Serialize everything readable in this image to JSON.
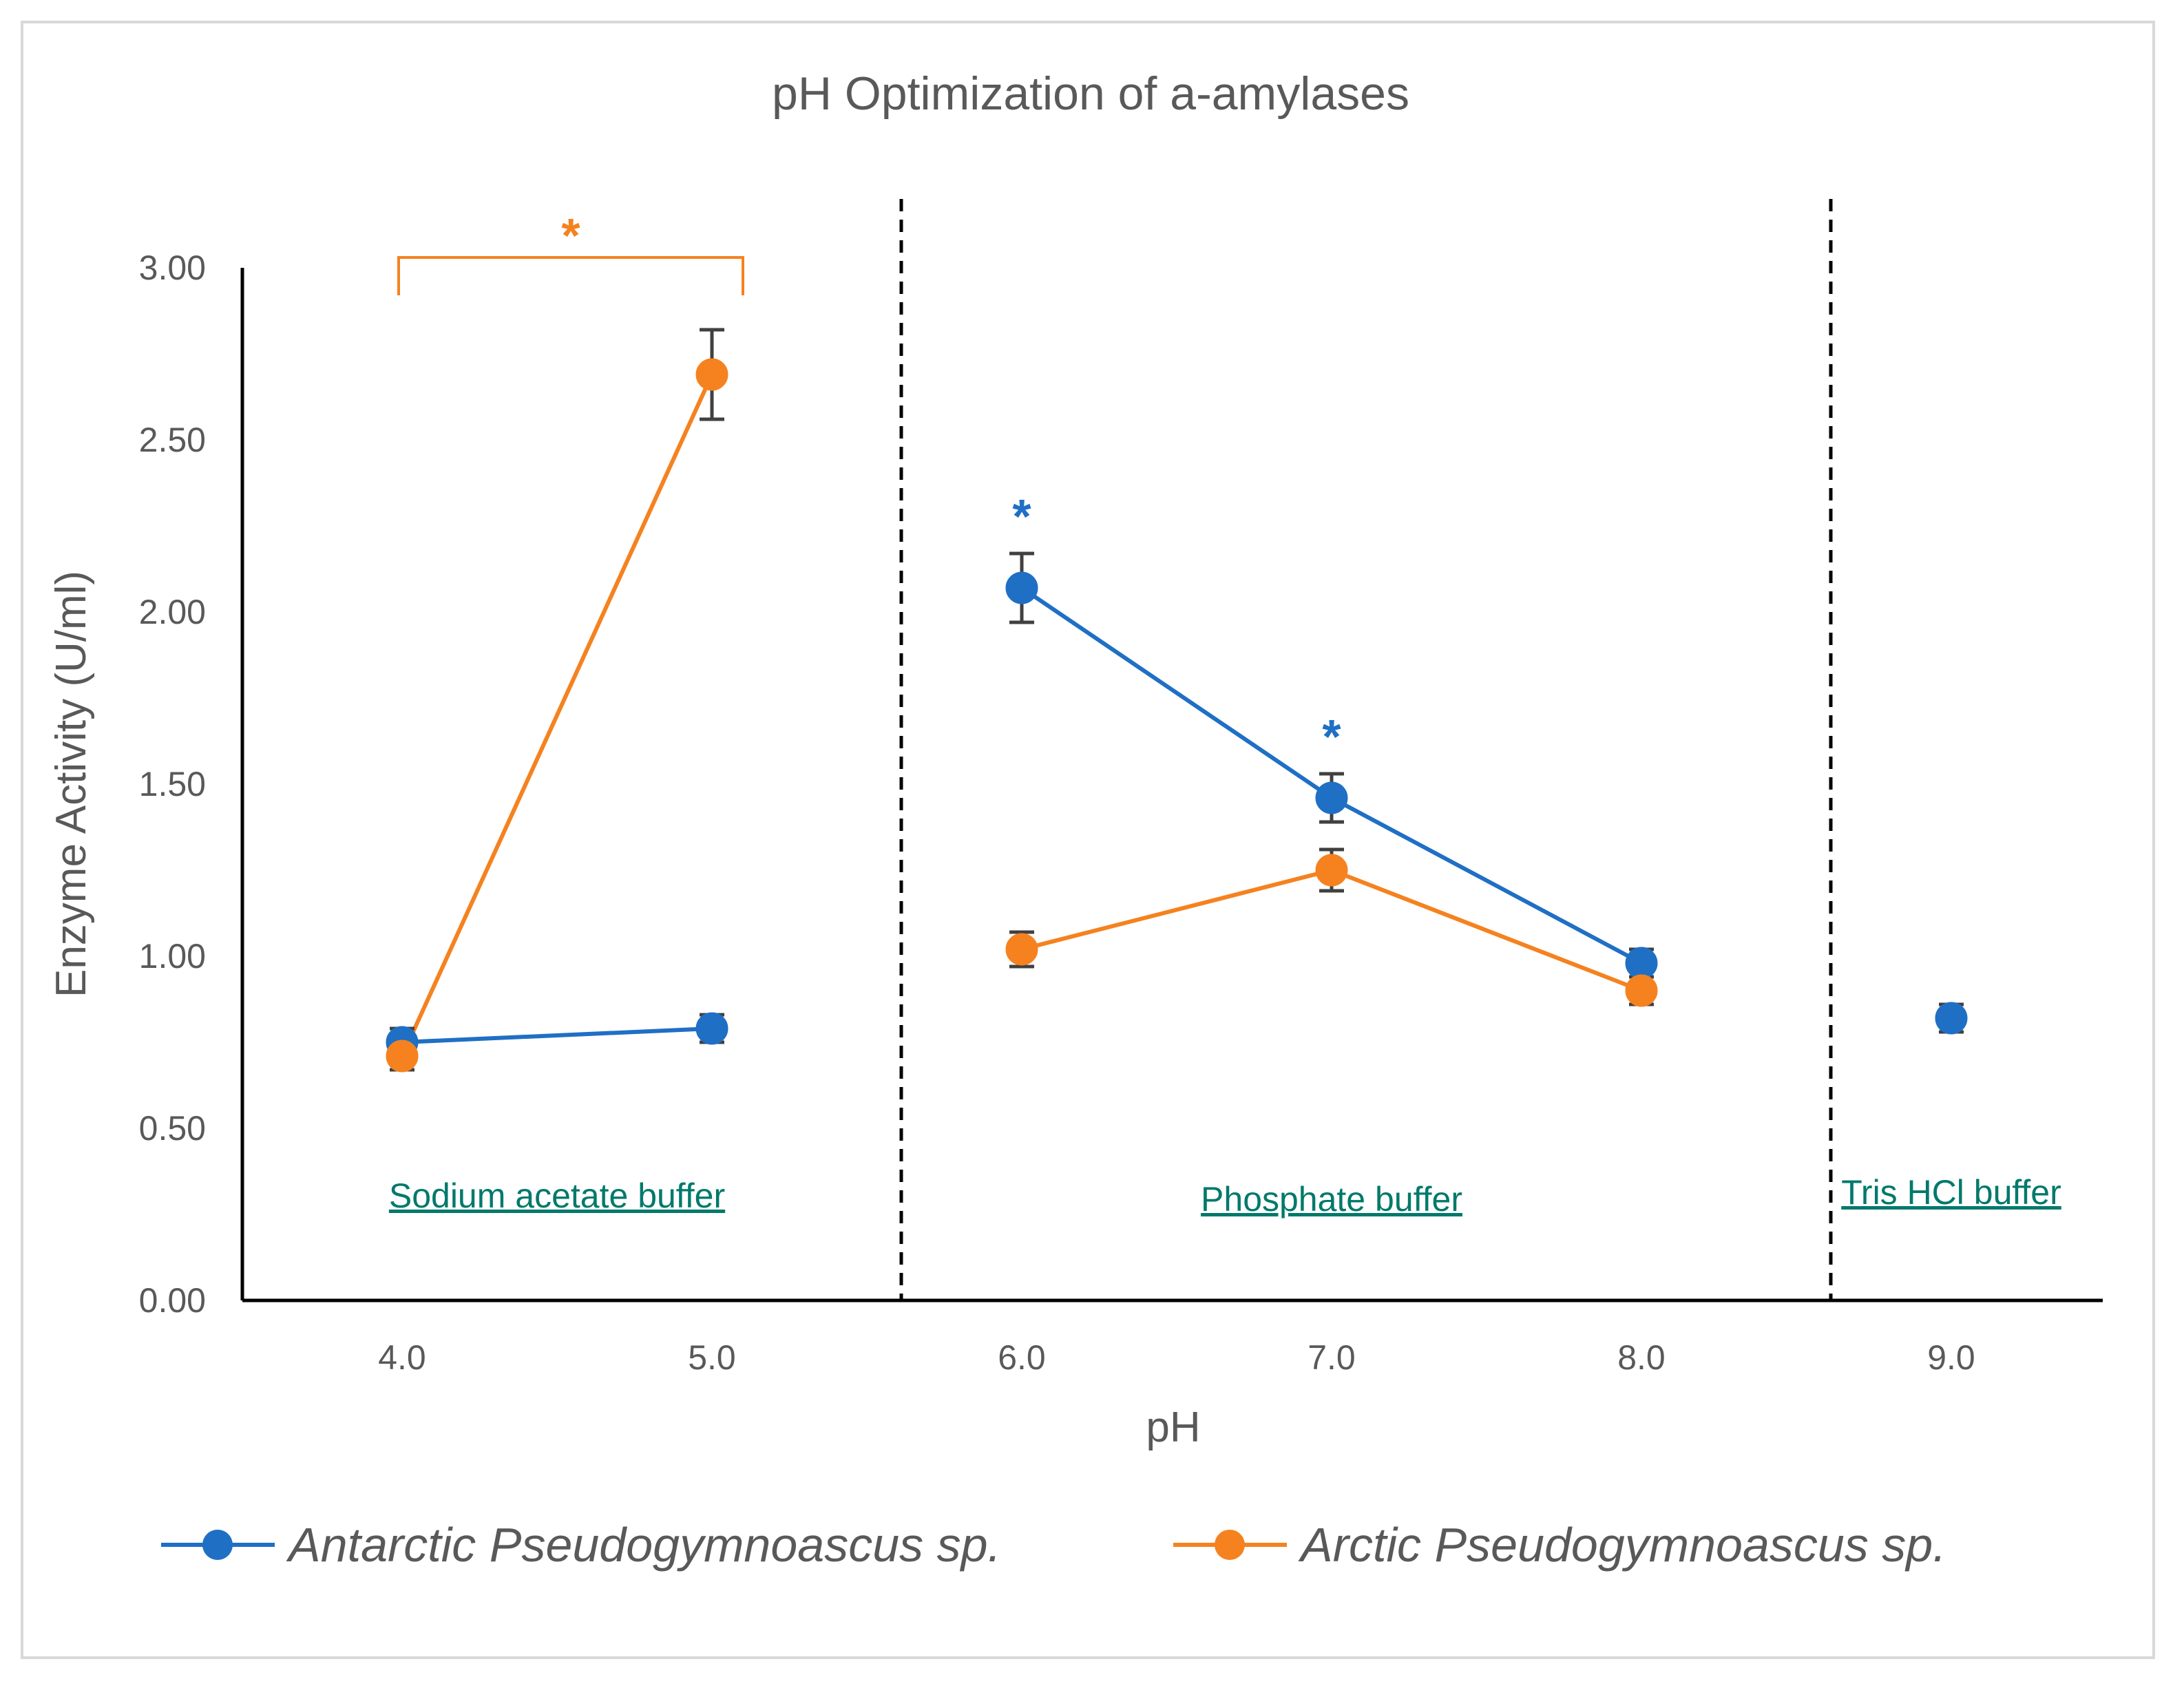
{
  "chart_data": {
    "type": "line",
    "title": "pH Optimization of a-amylases",
    "xlabel": "pH",
    "ylabel": "Enzyme Activity (U/ml)",
    "ylim": [
      0,
      3
    ],
    "yticks": [
      "0.00",
      "0.50",
      "1.00",
      "1.50",
      "2.00",
      "2.50",
      "3.00"
    ],
    "categories": [
      "4.0",
      "5.0",
      "6.0",
      "7.0",
      "8.0",
      "9.0"
    ],
    "series": [
      {
        "name": "Antarctic Pseudogymnoascus sp.",
        "color": "#1f6fc5",
        "values": [
          0.75,
          0.79,
          2.07,
          1.46,
          0.98,
          0.82
        ],
        "errors": [
          0.04,
          0.04,
          0.1,
          0.07,
          0.04,
          0.04
        ],
        "segments": [
          [
            0,
            1
          ],
          [
            2,
            4
          ],
          [
            5,
            5
          ]
        ]
      },
      {
        "name": "Arctic Pseudogymnoascus sp.",
        "color": "#f5821f",
        "values": [
          0.71,
          2.69,
          1.02,
          1.25,
          0.9,
          null
        ],
        "errors": [
          0.04,
          0.13,
          0.05,
          0.06,
          0.04,
          null
        ],
        "segments": [
          [
            0,
            1
          ],
          [
            2,
            4
          ]
        ]
      }
    ],
    "regions": [
      {
        "label": "Sodium acetate buffer",
        "from": 0,
        "to": 1
      },
      {
        "label": "Phosphate buffer",
        "from": 2,
        "to": 4
      },
      {
        "label": "Tris HCl buffer",
        "from": 5,
        "to": 5
      }
    ],
    "annotations": [
      {
        "text": "*",
        "series": "Arctic Pseudogymnoascus sp.",
        "type": "bracket",
        "from": 0,
        "to": 1,
        "y": 3.03
      },
      {
        "text": "*",
        "series": "Antarctic Pseudogymnoascus sp.",
        "at": 2,
        "y": 2.3
      },
      {
        "text": "*",
        "series": "Antarctic Pseudogymnoascus sp.",
        "at": 3,
        "y": 1.66
      }
    ],
    "legend": "bottom"
  }
}
